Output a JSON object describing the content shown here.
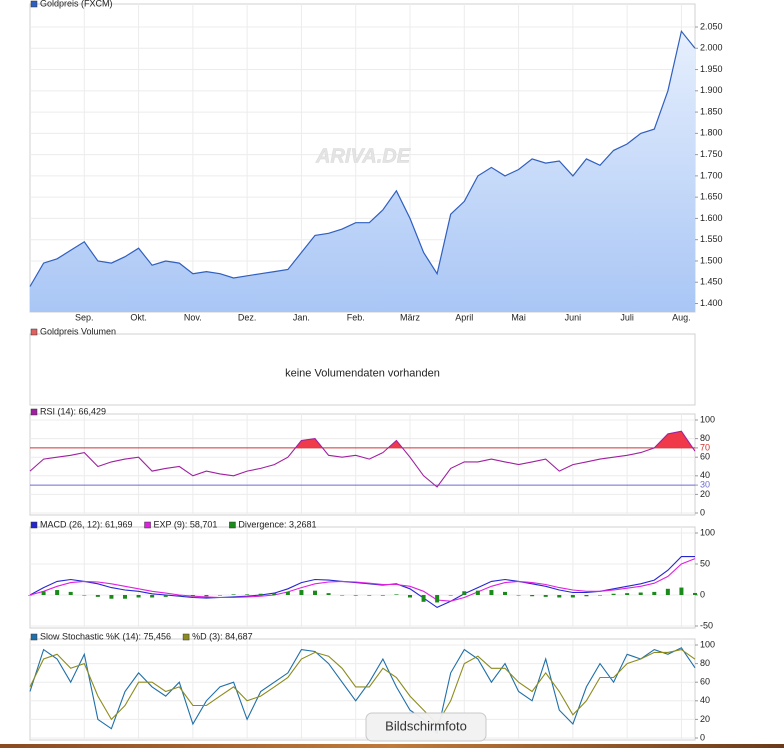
{
  "chart_data": [
    {
      "type": "area",
      "title": "Goldpreis (FXCM)",
      "color": "#2f5fbf",
      "fill": "#c8dcfa",
      "categories": [
        null,
        null,
        null,
        null,
        "Sep.",
        null,
        null,
        null,
        "Okt.",
        null,
        null,
        null,
        "Nov.",
        null,
        null,
        null,
        "Dez.",
        null,
        null,
        null,
        "Jan.",
        null,
        null,
        null,
        "Feb.",
        null,
        null,
        null,
        "März",
        null,
        null,
        null,
        "April",
        null,
        null,
        null,
        "Mai",
        null,
        null,
        null,
        "Juni",
        null,
        null,
        null,
        "Juli",
        null,
        null,
        null,
        "Aug.",
        null
      ],
      "values": [
        1440,
        1495,
        1505,
        1525,
        1545,
        1500,
        1495,
        1510,
        1530,
        1490,
        1500,
        1495,
        1470,
        1475,
        1470,
        1460,
        1465,
        1470,
        1475,
        1480,
        1520,
        1560,
        1565,
        1575,
        1590,
        1590,
        1620,
        1665,
        1600,
        1520,
        1470,
        1610,
        1640,
        1700,
        1720,
        1700,
        1715,
        1740,
        1730,
        1735,
        1700,
        1740,
        1725,
        1760,
        1775,
        1800,
        1810,
        1900,
        2040,
        2000
      ],
      "ylim": [
        1380,
        2090
      ],
      "yticks": [
        {
          "value": 2050,
          "label": "2.050"
        },
        {
          "value": 2000,
          "label": "2.000"
        },
        {
          "value": 1950,
          "label": "1.950"
        },
        {
          "value": 1900,
          "label": "1.900"
        },
        {
          "value": 1850,
          "label": "1.850"
        },
        {
          "value": 1800,
          "label": "1.800"
        },
        {
          "value": 1750,
          "label": "1.750"
        },
        {
          "value": 1700,
          "label": "1.700"
        },
        {
          "value": 1650,
          "label": "1.650"
        },
        {
          "value": 1600,
          "label": "1.600"
        },
        {
          "value": 1550,
          "label": "1.550"
        },
        {
          "value": 1500,
          "label": "1.500"
        },
        {
          "value": 1450,
          "label": "1.450"
        },
        {
          "value": 1400,
          "label": "1.400"
        }
      ],
      "grid": true,
      "watermark": "ARIVA.DE"
    },
    {
      "type": "message",
      "title": "Goldpreis Volumen",
      "color": "#e06060",
      "message": "keine Volumendaten vorhanden"
    },
    {
      "type": "line",
      "ylim": [
        0,
        100
      ],
      "yticks": [
        100,
        80,
        70,
        60,
        40,
        30,
        20,
        0
      ],
      "ref_lines": [
        {
          "value": 70,
          "color": "#d03030"
        },
        {
          "value": 30,
          "color": "#6a6ad8"
        }
      ],
      "series": [
        {
          "name": "RSI (14): 66,429",
          "color": "#a020a0",
          "fill_above": 70,
          "fill_color": "#f03a4a",
          "values": [
            45,
            58,
            60,
            62,
            65,
            50,
            55,
            58,
            60,
            45,
            48,
            50,
            40,
            45,
            42,
            40,
            45,
            48,
            52,
            60,
            78,
            80,
            62,
            60,
            62,
            58,
            65,
            78,
            60,
            40,
            28,
            48,
            55,
            55,
            58,
            55,
            52,
            55,
            58,
            45,
            52,
            55,
            58,
            60,
            62,
            65,
            70,
            85,
            88,
            66.429
          ]
        }
      ]
    },
    {
      "type": "line",
      "ylim": [
        -50,
        100
      ],
      "yticks": [
        100,
        50,
        0,
        -50
      ],
      "series": [
        {
          "name": "MACD (26, 12): 61,969",
          "color": "#2626d0",
          "values": [
            0,
            12,
            22,
            25,
            22,
            18,
            12,
            8,
            6,
            2,
            0,
            -2,
            -4,
            -5,
            -4,
            -3,
            -2,
            0,
            3,
            10,
            20,
            25,
            24,
            22,
            20,
            18,
            16,
            18,
            10,
            -5,
            -20,
            -10,
            2,
            12,
            22,
            25,
            22,
            18,
            14,
            8,
            4,
            4,
            6,
            10,
            14,
            18,
            24,
            40,
            62,
            61.969
          ]
        },
        {
          "name": "EXP (9): 58,701",
          "color": "#e020e0",
          "values": [
            0,
            6,
            14,
            20,
            22,
            21,
            18,
            14,
            10,
            6,
            3,
            0,
            -2,
            -3,
            -4,
            -4,
            -3,
            -2,
            0,
            5,
            12,
            18,
            21,
            22,
            21,
            19,
            17,
            17,
            14,
            6,
            -8,
            -10,
            -4,
            5,
            14,
            20,
            22,
            20,
            17,
            12,
            8,
            6,
            6,
            8,
            11,
            14,
            19,
            30,
            50,
            58.701
          ]
        },
        {
          "name": "Divergence: 3,2681",
          "color": "#1a8a1a",
          "kind": "bar",
          "values": [
            0,
            6,
            8,
            5,
            0,
            -3,
            -6,
            -6,
            -4,
            -4,
            -3,
            -2,
            -2,
            -2,
            0,
            1,
            1,
            2,
            3,
            5,
            8,
            7,
            3,
            0,
            -1,
            -1,
            -1,
            1,
            -4,
            -11,
            -12,
            0,
            6,
            7,
            8,
            5,
            0,
            -2,
            -3,
            -4,
            -4,
            -2,
            0,
            2,
            3,
            4,
            5,
            10,
            12,
            3.2681
          ]
        }
      ]
    },
    {
      "type": "line",
      "ylim": [
        0,
        100
      ],
      "yticks": [
        100,
        80,
        60,
        40,
        20,
        0
      ],
      "series": [
        {
          "name": "Slow Stochastic %K (14): 75,456",
          "color": "#1f6fa8",
          "values": [
            50,
            95,
            85,
            60,
            90,
            20,
            10,
            50,
            70,
            55,
            45,
            60,
            15,
            40,
            55,
            60,
            20,
            50,
            60,
            70,
            95,
            93,
            80,
            60,
            40,
            60,
            85,
            55,
            30,
            20,
            5,
            70,
            95,
            85,
            60,
            80,
            50,
            40,
            85,
            30,
            15,
            55,
            80,
            60,
            90,
            85,
            95,
            90,
            97,
            75.456
          ]
        },
        {
          "name": "%D (3): 84,687",
          "color": "#8c8c1e",
          "values": [
            55,
            85,
            90,
            75,
            80,
            45,
            20,
            35,
            60,
            60,
            50,
            55,
            35,
            35,
            45,
            55,
            40,
            45,
            55,
            65,
            85,
            92,
            88,
            75,
            55,
            55,
            75,
            65,
            45,
            30,
            15,
            40,
            80,
            88,
            75,
            75,
            60,
            50,
            70,
            50,
            25,
            40,
            65,
            65,
            80,
            85,
            92,
            92,
            95,
            84.687
          ]
        }
      ]
    }
  ],
  "overlay": {
    "tooltip": "Bildschirmfoto"
  }
}
